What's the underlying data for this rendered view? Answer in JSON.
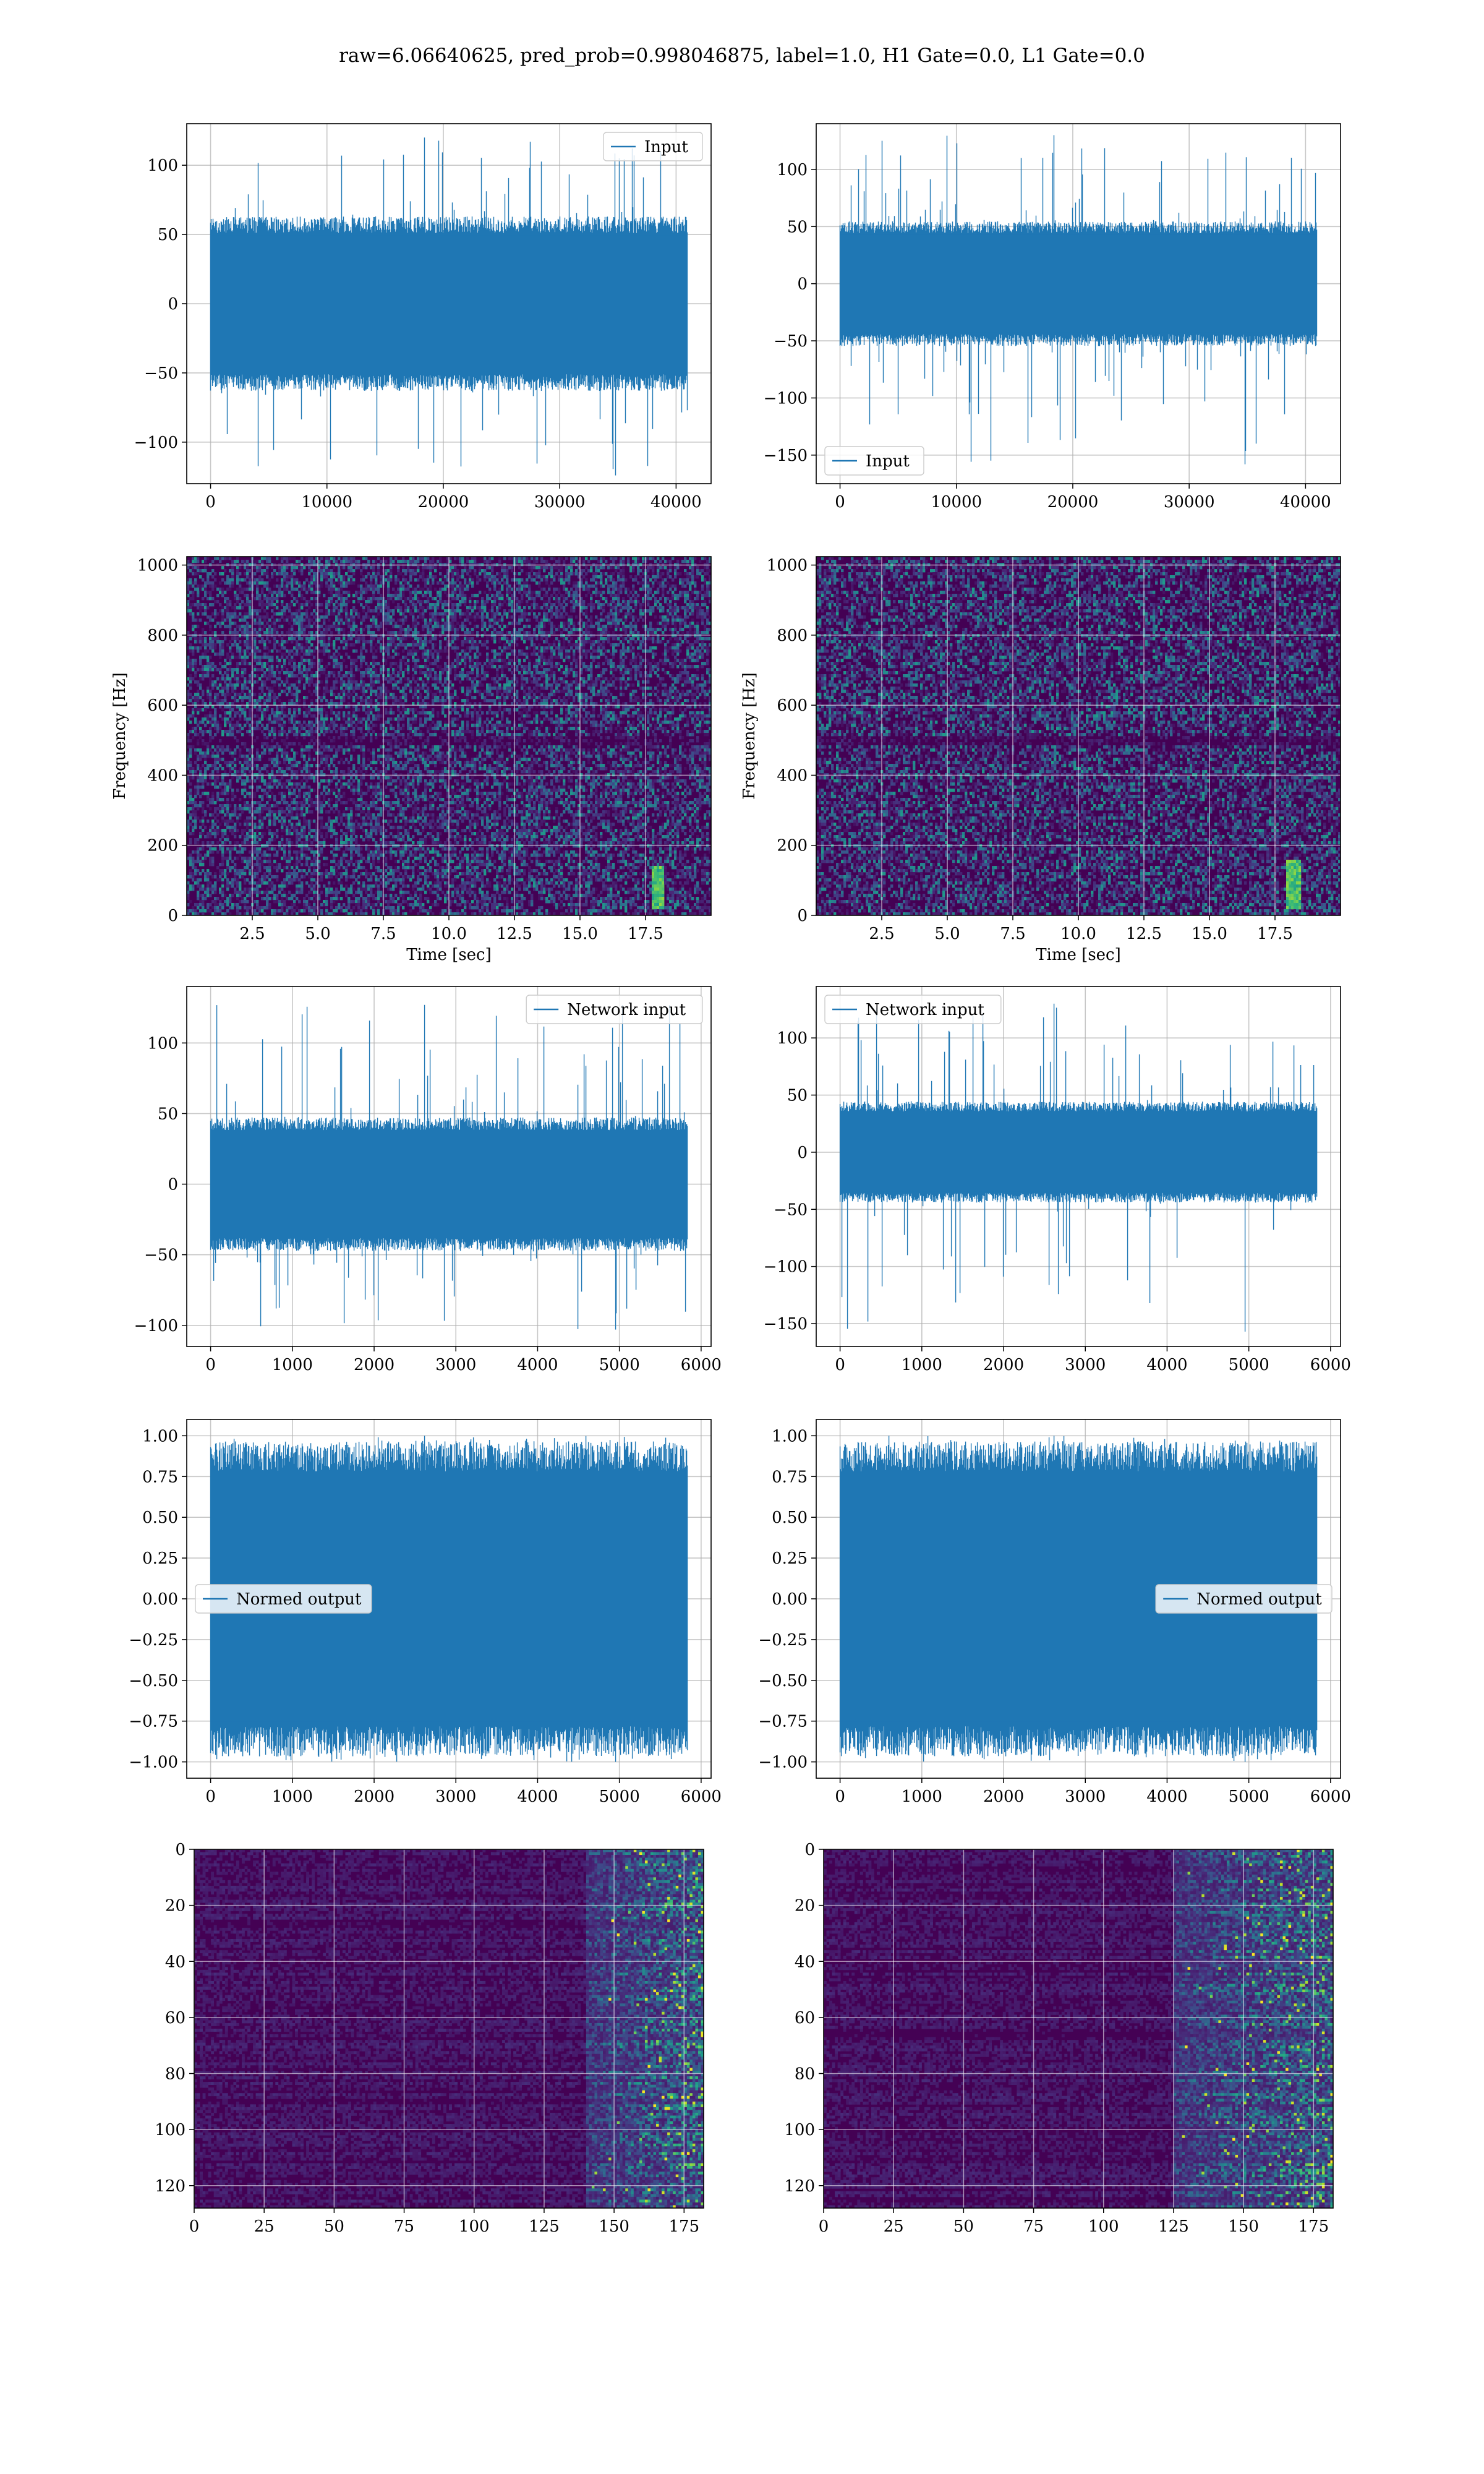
{
  "figure": {
    "suptitle": "raw=6.06640625, pred_prob=0.998046875, label=1.0, H1 Gate=0.0, L1 Gate=0.0",
    "colors": {
      "line": "#1f77b4",
      "grid": "#b0b0b0",
      "viridis_low": "#440154",
      "viridis_mid": "#21918c",
      "viridis_high": "#fde725"
    }
  },
  "chart_data": [
    {
      "id": "h1-input",
      "type": "line",
      "series": [
        {
          "name": "Input"
        }
      ],
      "x_range": [
        0,
        40960
      ],
      "xlim": [
        -2048,
        43008
      ],
      "ylim": [
        -130,
        130
      ],
      "envelope": {
        "bulk": 60,
        "peak_min": -124,
        "peak_max": 120
      },
      "xticks": [
        0,
        10000,
        20000,
        30000,
        40000
      ],
      "xtick_labels": [
        "0",
        "10000",
        "20000",
        "30000",
        "40000"
      ],
      "yticks": [
        -100,
        -50,
        0,
        50,
        100
      ],
      "ytick_labels": [
        "−100",
        "−50",
        "0",
        "50",
        "100"
      ],
      "legend": "upper right",
      "grid": true,
      "xlabel": "",
      "ylabel": ""
    },
    {
      "id": "l1-input",
      "type": "line",
      "series": [
        {
          "name": "Input"
        }
      ],
      "x_range": [
        0,
        40960
      ],
      "xlim": [
        -2048,
        43008
      ],
      "ylim": [
        -175,
        140
      ],
      "envelope": {
        "bulk": 52,
        "peak_min": -158,
        "peak_max": 130
      },
      "xticks": [
        0,
        10000,
        20000,
        30000,
        40000
      ],
      "xtick_labels": [
        "0",
        "10000",
        "20000",
        "30000",
        "40000"
      ],
      "yticks": [
        -150,
        -100,
        -50,
        0,
        50,
        100
      ],
      "ytick_labels": [
        "−150",
        "−100",
        "−50",
        "0",
        "50",
        "100"
      ],
      "legend": "lower left",
      "grid": true,
      "xlabel": "",
      "ylabel": ""
    },
    {
      "id": "h1-spectrogram",
      "type": "heatmap",
      "xlim": [
        0,
        20
      ],
      "ylim": [
        0,
        1024
      ],
      "xticks": [
        2.5,
        5.0,
        7.5,
        10.0,
        12.5,
        15.0,
        17.5
      ],
      "xtick_labels": [
        "2.5",
        "5.0",
        "7.5",
        "10.0",
        "12.5",
        "15.0",
        "17.5"
      ],
      "yticks": [
        0,
        200,
        400,
        600,
        800,
        1000
      ],
      "ytick_labels": [
        "0",
        "200",
        "400",
        "600",
        "800",
        "1000"
      ],
      "xlabel": "Time [sec]",
      "ylabel": "Frequency [Hz]",
      "colormap": "viridis",
      "grid": true,
      "features": {
        "dark_band_hz": 500,
        "chirp_sec": 18.0,
        "chirp_hz": [
          20,
          140
        ]
      }
    },
    {
      "id": "l1-spectrogram",
      "type": "heatmap",
      "xlim": [
        0,
        20
      ],
      "ylim": [
        0,
        1024
      ],
      "xticks": [
        2.5,
        5.0,
        7.5,
        10.0,
        12.5,
        15.0,
        17.5
      ],
      "xtick_labels": [
        "2.5",
        "5.0",
        "7.5",
        "10.0",
        "12.5",
        "15.0",
        "17.5"
      ],
      "yticks": [
        0,
        200,
        400,
        600,
        800,
        1000
      ],
      "ytick_labels": [
        "0",
        "200",
        "400",
        "600",
        "800",
        "1000"
      ],
      "xlabel": "Time [sec]",
      "ylabel": "Frequency [Hz]",
      "colormap": "viridis",
      "grid": true,
      "features": {
        "dark_band_hz": 500,
        "chirp_sec": 18.2,
        "chirp_hz": [
          20,
          160
        ]
      }
    },
    {
      "id": "h1-network-input",
      "type": "line",
      "series": [
        {
          "name": "Network input"
        }
      ],
      "x_range": [
        0,
        5830
      ],
      "xlim": [
        -292,
        6122
      ],
      "ylim": [
        -115,
        140
      ],
      "envelope": {
        "bulk": 45,
        "peak_min": -103,
        "peak_max": 127
      },
      "xticks": [
        0,
        1000,
        2000,
        3000,
        4000,
        5000,
        6000
      ],
      "xtick_labels": [
        "0",
        "1000",
        "2000",
        "3000",
        "4000",
        "5000",
        "6000"
      ],
      "yticks": [
        -100,
        -50,
        0,
        50,
        100
      ],
      "ytick_labels": [
        "−100",
        "−50",
        "0",
        "50",
        "100"
      ],
      "legend": "upper right",
      "grid": true,
      "xlabel": "",
      "ylabel": ""
    },
    {
      "id": "l1-network-input",
      "type": "line",
      "series": [
        {
          "name": "Network input"
        }
      ],
      "x_range": [
        0,
        5830
      ],
      "xlim": [
        -292,
        6122
      ],
      "ylim": [
        -170,
        145
      ],
      "envelope": {
        "bulk": 42,
        "peak_min": -157,
        "peak_max": 130
      },
      "xticks": [
        0,
        1000,
        2000,
        3000,
        4000,
        5000,
        6000
      ],
      "xtick_labels": [
        "0",
        "1000",
        "2000",
        "3000",
        "4000",
        "5000",
        "6000"
      ],
      "yticks": [
        -150,
        -100,
        -50,
        0,
        50,
        100
      ],
      "ytick_labels": [
        "−150",
        "−100",
        "−50",
        "0",
        "50",
        "100"
      ],
      "legend": "upper left",
      "grid": true,
      "xlabel": "",
      "ylabel": ""
    },
    {
      "id": "h1-normed-output",
      "type": "line",
      "series": [
        {
          "name": "Normed output"
        }
      ],
      "x_range": [
        0,
        5830
      ],
      "xlim": [
        -292,
        6122
      ],
      "ylim": [
        -1.1,
        1.1
      ],
      "envelope": {
        "bulk": 0.92,
        "peak_min": -1.0,
        "peak_max": 1.0
      },
      "xticks": [
        0,
        1000,
        2000,
        3000,
        4000,
        5000,
        6000
      ],
      "xtick_labels": [
        "0",
        "1000",
        "2000",
        "3000",
        "4000",
        "5000",
        "6000"
      ],
      "yticks": [
        -1.0,
        -0.75,
        -0.5,
        -0.25,
        0.0,
        0.25,
        0.5,
        0.75,
        1.0
      ],
      "ytick_labels": [
        "−1.00",
        "−0.75",
        "−0.50",
        "−0.25",
        "0.00",
        "0.25",
        "0.50",
        "0.75",
        "1.00"
      ],
      "legend": "center left",
      "grid": true,
      "xlabel": "",
      "ylabel": ""
    },
    {
      "id": "l1-normed-output",
      "type": "line",
      "series": [
        {
          "name": "Normed output"
        }
      ],
      "x_range": [
        0,
        5830
      ],
      "xlim": [
        -292,
        6122
      ],
      "ylim": [
        -1.1,
        1.1
      ],
      "envelope": {
        "bulk": 0.92,
        "peak_min": -1.0,
        "peak_max": 1.0
      },
      "xticks": [
        0,
        1000,
        2000,
        3000,
        4000,
        5000,
        6000
      ],
      "xtick_labels": [
        "0",
        "1000",
        "2000",
        "3000",
        "4000",
        "5000",
        "6000"
      ],
      "yticks": [
        -1.0,
        -0.75,
        -0.5,
        -0.25,
        0.0,
        0.25,
        0.5,
        0.75,
        1.0
      ],
      "ytick_labels": [
        "−1.00",
        "−0.75",
        "−0.50",
        "−0.25",
        "0.00",
        "0.25",
        "0.50",
        "0.75",
        "1.00"
      ],
      "legend": "center right",
      "grid": true,
      "xlabel": "",
      "ylabel": ""
    },
    {
      "id": "h1-feature-map",
      "type": "heatmap",
      "xlim": [
        0,
        182
      ],
      "ylim": [
        128,
        0
      ],
      "xticks": [
        0,
        25,
        50,
        75,
        100,
        125,
        150,
        175
      ],
      "xtick_labels": [
        "0",
        "25",
        "50",
        "75",
        "100",
        "125",
        "150",
        "175"
      ],
      "yticks": [
        0,
        20,
        40,
        60,
        80,
        100,
        120
      ],
      "ytick_labels": [
        "0",
        "20",
        "40",
        "60",
        "80",
        "100",
        "120"
      ],
      "xlabel": "",
      "ylabel": "",
      "colormap": "viridis",
      "grid": true,
      "features": {
        "bright_region_start_col": 140
      }
    },
    {
      "id": "l1-feature-map",
      "type": "heatmap",
      "xlim": [
        0,
        182
      ],
      "ylim": [
        128,
        0
      ],
      "xticks": [
        0,
        25,
        50,
        75,
        100,
        125,
        150,
        175
      ],
      "xtick_labels": [
        "0",
        "25",
        "50",
        "75",
        "100",
        "125",
        "150",
        "175"
      ],
      "yticks": [
        0,
        20,
        40,
        60,
        80,
        100,
        120
      ],
      "ytick_labels": [
        "0",
        "20",
        "40",
        "60",
        "80",
        "100",
        "120"
      ],
      "xlabel": "",
      "ylabel": "",
      "colormap": "viridis",
      "grid": true,
      "features": {
        "bright_region_start_col": 125
      }
    }
  ]
}
